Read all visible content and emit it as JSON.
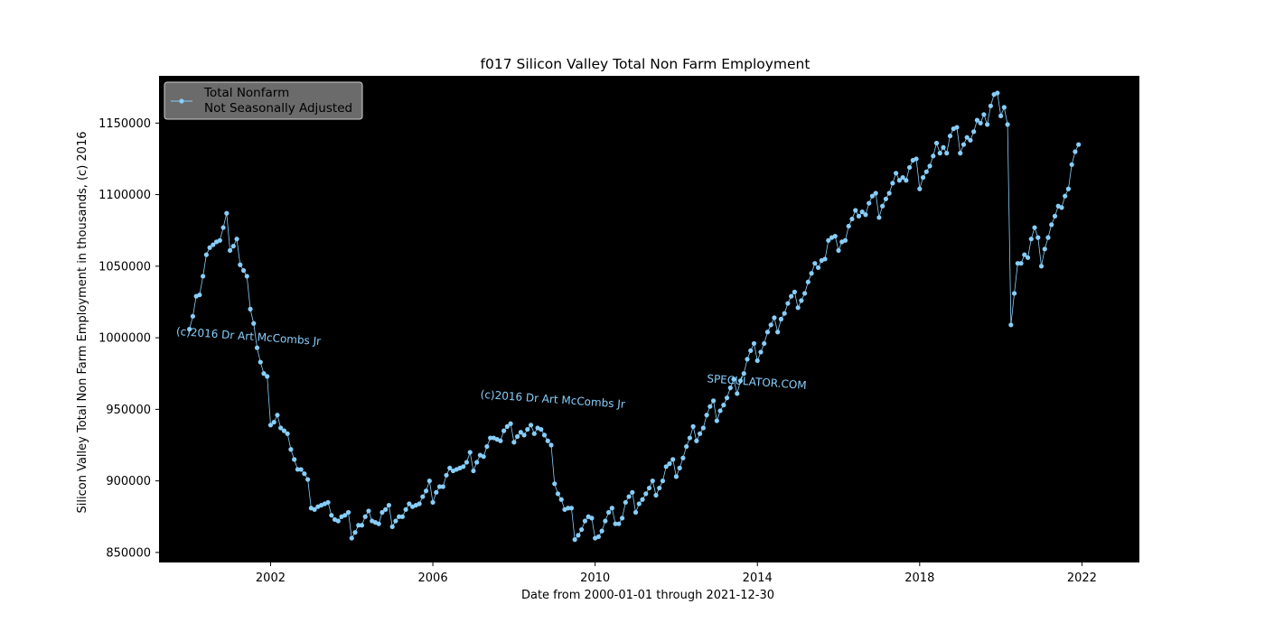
{
  "chart_data": {
    "type": "line",
    "title": "f017 Silicon Valley Total Non Farm Employment",
    "xlabel": "Date from 2000-01-01 through 2021-12-30",
    "ylabel": "Silicon Valley Total Non Farm Employment in thousands, (c) 2016",
    "xlim": [
      "1999-04-01",
      "2023-06-01"
    ],
    "ylim": [
      843000,
      1183000
    ],
    "xticks": [
      "2002",
      "2006",
      "2010",
      "2014",
      "2018",
      "2022"
    ],
    "yticks": [
      850000,
      900000,
      950000,
      1000000,
      1050000,
      1100000,
      1150000
    ],
    "grid": false,
    "legend_position": "top-left",
    "colors": {
      "background": "#000000",
      "series": "#87cefa",
      "legend_box": "#6b6b6b"
    },
    "annotations": [
      {
        "text": "(c)2016 Dr Art McCombs Jr",
        "date": "1999-09-01",
        "value": 1002000,
        "rotation": 4
      },
      {
        "text": "(c)2016 Dr Art McCombs Jr",
        "date": "2007-03-01",
        "value": 958000,
        "rotation": 4
      },
      {
        "text": "SPECULATOR.COM",
        "date": "2012-10-01",
        "value": 969000,
        "rotation": 4
      }
    ],
    "series": [
      {
        "name": "Total Nonfarm\nNot Seasonally Adjusted",
        "legend_lines": [
          "Total Nonfarm",
          "Not Seasonally Adjusted"
        ],
        "start": "2000-01",
        "frequency": "monthly",
        "values": [
          1006000,
          1015000,
          1029000,
          1030000,
          1043000,
          1058000,
          1063000,
          1065000,
          1067000,
          1068000,
          1077000,
          1087000,
          1061000,
          1064000,
          1069000,
          1051000,
          1047000,
          1043000,
          1020000,
          1010000,
          993000,
          983000,
          975000,
          973000,
          939000,
          941000,
          946000,
          937000,
          935000,
          933000,
          922000,
          915000,
          908000,
          908000,
          905000,
          901000,
          881000,
          880000,
          882000,
          883000,
          884000,
          885000,
          876000,
          873000,
          872000,
          875000,
          876000,
          878000,
          860000,
          864000,
          869000,
          869000,
          875000,
          879000,
          872000,
          871000,
          870000,
          878000,
          880000,
          883000,
          868000,
          872000,
          875000,
          875000,
          880000,
          884000,
          882000,
          883000,
          884000,
          889000,
          893000,
          900000,
          885000,
          892000,
          896000,
          896000,
          904000,
          909000,
          907000,
          908000,
          909000,
          910000,
          913000,
          920000,
          907000,
          913000,
          918000,
          917000,
          924000,
          930000,
          930000,
          929000,
          928000,
          935000,
          938000,
          940000,
          927000,
          931000,
          934000,
          932000,
          936000,
          939000,
          933000,
          937000,
          936000,
          932000,
          928000,
          925000,
          898000,
          891000,
          887000,
          880000,
          881000,
          881000,
          859000,
          862000,
          866000,
          872000,
          875000,
          874000,
          860000,
          861000,
          865000,
          872000,
          878000,
          881000,
          870000,
          870000,
          874000,
          885000,
          889000,
          892000,
          878000,
          884000,
          887000,
          891000,
          895000,
          900000,
          890000,
          895000,
          900000,
          910000,
          912000,
          915000,
          903000,
          909000,
          916000,
          924000,
          930000,
          938000,
          928000,
          933000,
          937000,
          946000,
          952000,
          956000,
          942000,
          949000,
          953000,
          958000,
          965000,
          971000,
          961000,
          970000,
          975000,
          985000,
          991000,
          996000,
          984000,
          990000,
          996000,
          1004000,
          1009000,
          1014000,
          1004000,
          1013000,
          1017000,
          1024000,
          1029000,
          1032000,
          1021000,
          1026000,
          1031000,
          1039000,
          1045000,
          1052000,
          1049000,
          1054000,
          1055000,
          1068000,
          1070000,
          1071000,
          1061000,
          1067000,
          1068000,
          1078000,
          1083000,
          1089000,
          1085000,
          1088000,
          1086000,
          1094000,
          1099000,
          1101000,
          1084000,
          1092000,
          1097000,
          1101000,
          1108000,
          1115000,
          1110000,
          1112000,
          1110000,
          1119000,
          1124000,
          1125000,
          1104000,
          1112000,
          1116000,
          1120000,
          1127000,
          1136000,
          1129000,
          1133000,
          1129000,
          1141000,
          1146000,
          1147000,
          1129000,
          1135000,
          1140000,
          1138000,
          1144000,
          1152000,
          1150000,
          1156000,
          1149000,
          1162000,
          1170000,
          1171000,
          1155000,
          1161000,
          1149000,
          1009000,
          1031000,
          1052000,
          1052000,
          1058000,
          1056000,
          1069000,
          1077000,
          1070000,
          1050000,
          1062000,
          1070000,
          1079000,
          1085000,
          1092000,
          1091000,
          1099000,
          1104000,
          1121000,
          1130000,
          1135000
        ]
      }
    ]
  }
}
